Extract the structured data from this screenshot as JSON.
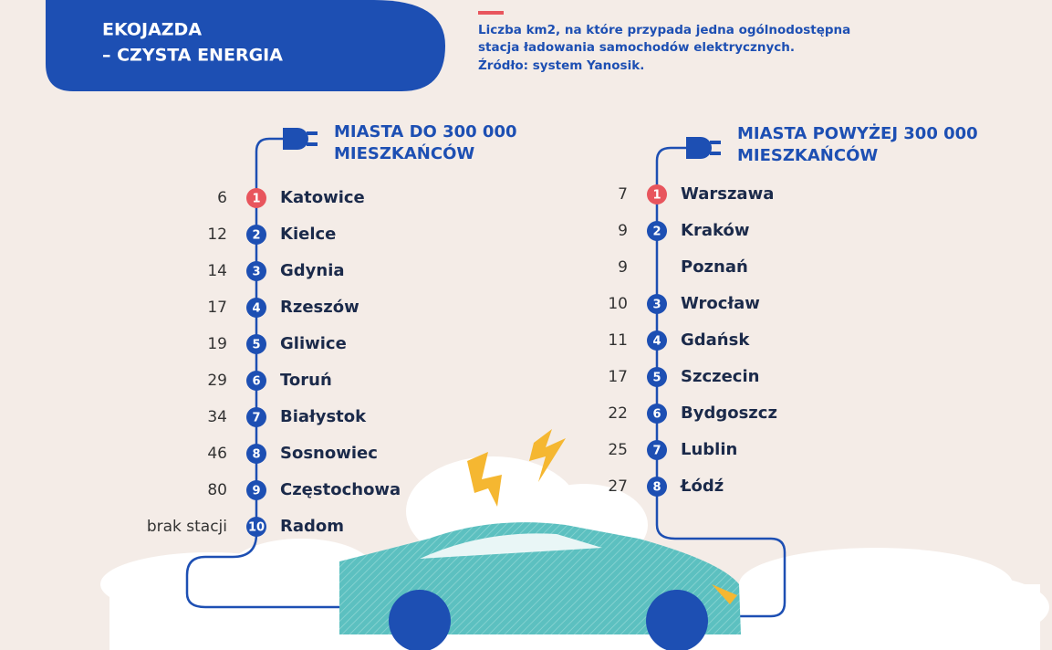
{
  "header": {
    "title": [
      "EKOJAZDA",
      "– CZYSTA ENERGIA"
    ],
    "note": [
      "Liczba km2, na które przypada jedna ogólnodostępna",
      "stacja ładowania samochodów elektrycznych.",
      "Źródło: system Yanosik."
    ]
  },
  "groups": [
    {
      "heading": [
        "MIASTA DO 300 000",
        "MIESZKAŃCÓW"
      ],
      "items": [
        {
          "rank": 1,
          "city": "Katowice",
          "value": 6
        },
        {
          "rank": 2,
          "city": "Kielce",
          "value": 12
        },
        {
          "rank": 3,
          "city": "Gdynia",
          "value": 14
        },
        {
          "rank": 4,
          "city": "Rzeszów",
          "value": 17
        },
        {
          "rank": 5,
          "city": "Gliwice",
          "value": 19
        },
        {
          "rank": 6,
          "city": "Toruń",
          "value": 29
        },
        {
          "rank": 7,
          "city": "Białystok",
          "value": 34
        },
        {
          "rank": 8,
          "city": "Sosnowiec",
          "value": 46
        },
        {
          "rank": 9,
          "city": "Częstochowa",
          "value": 80
        },
        {
          "rank": 10,
          "city": "Radom",
          "value": "brak stacji"
        }
      ]
    },
    {
      "heading": [
        "MIASTA POWYŻEJ 300 000",
        "MIESZKAŃCÓW"
      ],
      "items": [
        {
          "rank": 1,
          "city": "Warszawa",
          "value": 7
        },
        {
          "rank": 2,
          "city": "Kraków",
          "value": 9
        },
        {
          "city": "Poznań",
          "value": 9
        },
        {
          "rank": 3,
          "city": "Wrocław",
          "value": 10
        },
        {
          "rank": 4,
          "city": "Gdańsk",
          "value": 11
        },
        {
          "rank": 5,
          "city": "Szczecin",
          "value": 17
        },
        {
          "rank": 6,
          "city": "Bydgoszcz",
          "value": 22
        },
        {
          "rank": 7,
          "city": "Lublin",
          "value": 25
        },
        {
          "rank": 8,
          "city": "Łódź",
          "value": 27
        }
      ]
    }
  ]
}
